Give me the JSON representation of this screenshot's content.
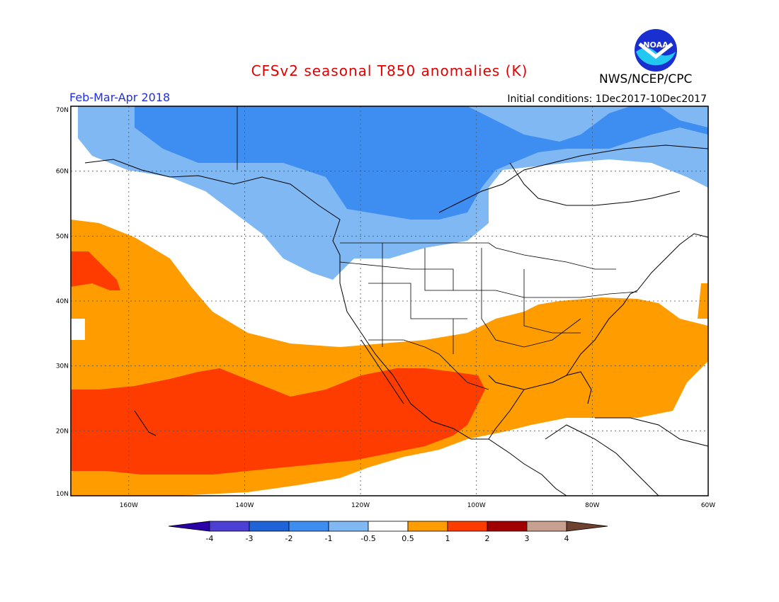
{
  "title": "CFSv2 seasonal T850 anomalies (K)",
  "agency": "NWS/NCEP/CPC",
  "logo": {
    "text": "NOAA",
    "icon": "noaa-logo-icon"
  },
  "period": "Feb-Mar-Apr 2018",
  "initial_conditions": "Initial conditions: 1Dec2017-10Dec2017",
  "map": {
    "lat_labels": [
      "70N",
      "60N",
      "50N",
      "40N",
      "30N",
      "20N",
      "10N"
    ],
    "lat_values": [
      70,
      60,
      50,
      40,
      30,
      20,
      10
    ],
    "lon_labels": [
      "160W",
      "140W",
      "120W",
      "100W",
      "80W",
      "60W"
    ],
    "lon_values": [
      -160,
      -140,
      -120,
      -100,
      -80,
      -60
    ],
    "lon_range": [
      -170,
      -60
    ],
    "lat_range": [
      10,
      70
    ],
    "gridlines": "dotted"
  },
  "legend": {
    "ticks": [
      "-4",
      "-3",
      "-2",
      "-1",
      "-0.5",
      "0.5",
      "1",
      "2",
      "3",
      "4"
    ],
    "colors": [
      "#2a00a8",
      "#4b3fd4",
      "#1e64d8",
      "#3d8ef0",
      "#80b8f4",
      "#ffffff",
      "#ff9c00",
      "#ff3c00",
      "#a00000",
      "#c8a090",
      "#6e4030"
    ]
  },
  "anomaly_colors": {
    "cold_strong": "#3d8ef0",
    "cold_weak": "#80b8f4",
    "warm_weak": "#ff9c00",
    "warm_strong": "#ff3c00"
  }
}
